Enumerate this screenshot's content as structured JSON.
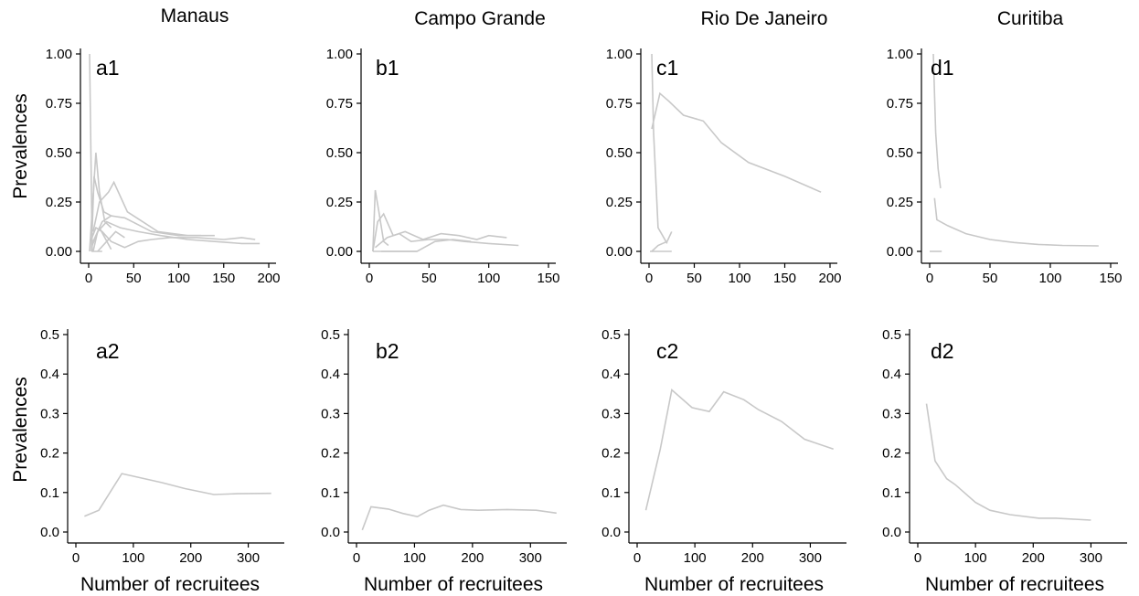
{
  "line_color": "#c8c8c8",
  "columns": [
    "Manaus",
    "Campo Grande",
    "Rio De Janeiro",
    "Curitiba"
  ],
  "row_ylabel": "Prevalences",
  "row_xlabel": "Number of recruitees",
  "chart_data": [
    {
      "type": "line",
      "label": "a1",
      "title": "Manaus",
      "xlim": [
        0,
        200
      ],
      "ylim": [
        0,
        1
      ],
      "xticks": [
        0,
        50,
        100,
        150,
        200
      ],
      "yticks": [
        0,
        0.25,
        0.5,
        0.75,
        1
      ],
      "ytick_labels": [
        "0.00",
        "0.25",
        "0.50",
        "0.75",
        "1.00"
      ],
      "series": [
        {
          "x": [
            1,
            4,
            10,
            15
          ],
          "y": [
            1.0,
            0.0,
            0.0,
            0.0
          ]
        },
        {
          "x": [
            1,
            8,
            12,
            18,
            25
          ],
          "y": [
            0.0,
            0.5,
            0.3,
            0.15,
            0.12
          ]
        },
        {
          "x": [
            3,
            6,
            10,
            17,
            25
          ],
          "y": [
            0.0,
            0.38,
            0.3,
            0.2,
            0.18
          ]
        },
        {
          "x": [
            5,
            12,
            22,
            28,
            43,
            60,
            77,
            110,
            140
          ],
          "y": [
            0.1,
            0.25,
            0.3,
            0.35,
            0.2,
            0.15,
            0.1,
            0.08,
            0.08
          ]
        },
        {
          "x": [
            5,
            15,
            25,
            40,
            70,
            100,
            125
          ],
          "y": [
            0.05,
            0.15,
            0.18,
            0.17,
            0.1,
            0.08,
            0.08
          ]
        },
        {
          "x": [
            5,
            10,
            20,
            35,
            55,
            80,
            110,
            140,
            170,
            190
          ],
          "y": [
            0.0,
            0.1,
            0.15,
            0.12,
            0.1,
            0.08,
            0.06,
            0.05,
            0.04,
            0.04
          ]
        },
        {
          "x": [
            2,
            8,
            15,
            25,
            40,
            55,
            70,
            90,
            120,
            150,
            170,
            185
          ],
          "y": [
            0.05,
            0.12,
            0.1,
            0.05,
            0.02,
            0.05,
            0.06,
            0.07,
            0.07,
            0.06,
            0.07,
            0.06
          ]
        },
        {
          "x": [
            10,
            20,
            30,
            40
          ],
          "y": [
            0.0,
            0.05,
            0.1,
            0.07
          ]
        },
        {
          "x": [
            3,
            12,
            25
          ],
          "y": [
            0.02,
            0.12,
            0.01
          ]
        }
      ]
    },
    {
      "type": "line",
      "label": "b1",
      "title": "Campo Grande",
      "xlim": [
        0,
        150
      ],
      "ylim": [
        0,
        1
      ],
      "xticks": [
        0,
        50,
        100,
        150
      ],
      "yticks": [
        0,
        0.25,
        0.5,
        0.75,
        1
      ],
      "ytick_labels": [
        "0.00",
        "0.25",
        "0.50",
        "0.75",
        "1.00"
      ],
      "series": [
        {
          "x": [
            3,
            5,
            8,
            12,
            16
          ],
          "y": [
            0.0,
            0.31,
            0.2,
            0.05,
            0.03
          ]
        },
        {
          "x": [
            3,
            7,
            12,
            20,
            30,
            45,
            60,
            75,
            90,
            100,
            115
          ],
          "y": [
            0.0,
            0.15,
            0.19,
            0.08,
            0.1,
            0.06,
            0.09,
            0.08,
            0.06,
            0.08,
            0.07
          ]
        },
        {
          "x": [
            5,
            15,
            25,
            35,
            50,
            65,
            80,
            100,
            125
          ],
          "y": [
            0.02,
            0.07,
            0.09,
            0.05,
            0.06,
            0.06,
            0.05,
            0.04,
            0.03
          ]
        },
        {
          "x": [
            3,
            20,
            40,
            55,
            70,
            85
          ],
          "y": [
            0.0,
            0.0,
            0.0,
            0.05,
            0.06,
            0.05
          ]
        },
        {
          "x": [
            10,
            20,
            30,
            40
          ],
          "y": [
            0.0,
            0.0,
            0.0,
            0.0
          ]
        }
      ]
    },
    {
      "type": "line",
      "label": "c1",
      "title": "Rio De Janeiro",
      "xlim": [
        0,
        200
      ],
      "ylim": [
        0,
        1
      ],
      "xticks": [
        0,
        50,
        100,
        150,
        200
      ],
      "yticks": [
        0,
        0.25,
        0.5,
        0.75,
        1
      ],
      "ytick_labels": [
        "0.00",
        "0.25",
        "0.50",
        "0.75",
        "1.00"
      ],
      "series": [
        {
          "x": [
            3,
            5,
            10,
            20
          ],
          "y": [
            1.0,
            0.6,
            0.12,
            0.04
          ]
        },
        {
          "x": [
            3,
            12,
            22,
            38,
            60,
            80,
            110,
            150,
            190
          ],
          "y": [
            0.62,
            0.8,
            0.76,
            0.69,
            0.66,
            0.55,
            0.45,
            0.38,
            0.3
          ]
        },
        {
          "x": [
            3,
            10,
            20,
            25
          ],
          "y": [
            0.0,
            0.03,
            0.05,
            0.1
          ]
        },
        {
          "x": [
            1,
            5,
            10,
            15,
            25
          ],
          "y": [
            0.0,
            0.0,
            0.0,
            0.0,
            0.0
          ]
        }
      ]
    },
    {
      "type": "line",
      "label": "d1",
      "title": "Curitiba",
      "xlim": [
        0,
        150
      ],
      "ylim": [
        0,
        1
      ],
      "xticks": [
        0,
        50,
        100,
        150
      ],
      "yticks": [
        0,
        0.25,
        0.5,
        0.75,
        1
      ],
      "ytick_labels": [
        "0.00",
        "0.25",
        "0.50",
        "0.75",
        "1.00"
      ],
      "series": [
        {
          "x": [
            3,
            5,
            7,
            9
          ],
          "y": [
            1.0,
            0.6,
            0.42,
            0.32
          ]
        },
        {
          "x": [
            4,
            6,
            15,
            30,
            50,
            70,
            90,
            110,
            140
          ],
          "y": [
            0.27,
            0.16,
            0.13,
            0.09,
            0.06,
            0.045,
            0.035,
            0.03,
            0.028
          ]
        },
        {
          "x": [
            0,
            5,
            10
          ],
          "y": [
            0.0,
            0.0,
            0.0
          ]
        }
      ]
    },
    {
      "type": "line",
      "label": "a2",
      "xlim": [
        0,
        350
      ],
      "ylim": [
        0,
        0.5
      ],
      "xticks": [
        0,
        100,
        200,
        300
      ],
      "yticks": [
        0,
        0.1,
        0.2,
        0.3,
        0.4,
        0.5
      ],
      "ytick_labels": [
        "0.0",
        "0.1",
        "0.2",
        "0.3",
        "0.4",
        "0.5"
      ],
      "series": [
        {
          "x": [
            15,
            40,
            80,
            150,
            190,
            240,
            280,
            340
          ],
          "y": [
            0.04,
            0.055,
            0.148,
            0.125,
            0.11,
            0.095,
            0.097,
            0.098
          ]
        }
      ]
    },
    {
      "type": "line",
      "label": "b2",
      "xlim": [
        0,
        350
      ],
      "ylim": [
        0,
        0.5
      ],
      "xticks": [
        0,
        100,
        200,
        300
      ],
      "yticks": [
        0,
        0.1,
        0.2,
        0.3,
        0.4,
        0.5
      ],
      "ytick_labels": [
        "0.0",
        "0.1",
        "0.2",
        "0.3",
        "0.4",
        "0.5"
      ],
      "series": [
        {
          "x": [
            10,
            25,
            55,
            80,
            105,
            125,
            150,
            180,
            210,
            260,
            310,
            345
          ],
          "y": [
            0.005,
            0.064,
            0.058,
            0.047,
            0.039,
            0.055,
            0.068,
            0.057,
            0.055,
            0.057,
            0.055,
            0.048
          ]
        }
      ]
    },
    {
      "type": "line",
      "label": "c2",
      "xlim": [
        0,
        350
      ],
      "ylim": [
        0,
        0.5
      ],
      "xticks": [
        0,
        100,
        200,
        300
      ],
      "yticks": [
        0,
        0.1,
        0.2,
        0.3,
        0.4,
        0.5
      ],
      "ytick_labels": [
        "0.0",
        "0.1",
        "0.2",
        "0.3",
        "0.4",
        "0.5"
      ],
      "series": [
        {
          "x": [
            15,
            40,
            60,
            95,
            125,
            150,
            185,
            210,
            250,
            290,
            340
          ],
          "y": [
            0.055,
            0.21,
            0.36,
            0.315,
            0.305,
            0.355,
            0.335,
            0.31,
            0.28,
            0.235,
            0.21
          ]
        }
      ]
    },
    {
      "type": "line",
      "label": "d2",
      "xlim": [
        0,
        350
      ],
      "ylim": [
        0,
        0.5
      ],
      "xticks": [
        0,
        100,
        200,
        300
      ],
      "yticks": [
        0,
        0.1,
        0.2,
        0.3,
        0.4,
        0.5
      ],
      "ytick_labels": [
        "0.0",
        "0.1",
        "0.2",
        "0.3",
        "0.4",
        "0.5"
      ],
      "series": [
        {
          "x": [
            15,
            30,
            50,
            65,
            100,
            125,
            160,
            210,
            240,
            300
          ],
          "y": [
            0.325,
            0.18,
            0.135,
            0.12,
            0.075,
            0.055,
            0.044,
            0.035,
            0.035,
            0.03
          ]
        }
      ]
    }
  ]
}
